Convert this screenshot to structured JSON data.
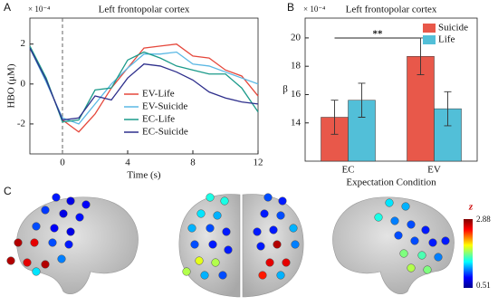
{
  "chart_data": [
    {
      "type": "line",
      "panel_label": "A",
      "title": "Left frontopolar cortex",
      "y_multiplier": "× 10⁻⁴",
      "ylabel": "HBO (μM)",
      "xlabel": "Time (s)",
      "x": [
        -2,
        -1,
        0,
        1,
        2,
        3,
        4,
        5,
        6,
        7,
        8,
        9,
        10,
        11,
        12
      ],
      "xlim": [
        -2,
        12
      ],
      "xticks": [
        0,
        4,
        8,
        12
      ],
      "ylim": [
        -3.5,
        3.3
      ],
      "yticks": [
        -2,
        0,
        2
      ],
      "reference_line_x": 0,
      "series": [
        {
          "name": "EV-Life",
          "color": "#e5473b",
          "values": [
            1.8,
            0.2,
            -1.8,
            -2.4,
            -1.5,
            -0.2,
            0.8,
            1.8,
            1.9,
            2.0,
            1.4,
            1.3,
            0.7,
            0.4,
            -0.6
          ]
        },
        {
          "name": "EV-Suicide",
          "color": "#5bb8e4",
          "values": [
            1.8,
            0.1,
            -1.7,
            -2.0,
            -1.0,
            0.0,
            0.8,
            1.5,
            1.5,
            1.6,
            1.0,
            0.9,
            0.6,
            0.3,
            0.0
          ]
        },
        {
          "name": "EC-Life",
          "color": "#1b9a8a",
          "values": [
            1.9,
            0.3,
            -1.9,
            -1.8,
            -0.3,
            -0.2,
            1.2,
            1.6,
            1.3,
            0.9,
            0.7,
            0.5,
            0.5,
            -0.2,
            -1.4
          ]
        },
        {
          "name": "EC-Suicide",
          "color": "#2e2f8c",
          "values": [
            1.8,
            0.2,
            -1.8,
            -1.7,
            -0.6,
            -0.8,
            0.3,
            1.0,
            0.9,
            0.6,
            0.2,
            -0.4,
            -0.7,
            -0.9,
            -1.0
          ]
        }
      ]
    },
    {
      "type": "bar",
      "panel_label": "B",
      "title": "Left frontopolar cortex",
      "y_multiplier": "× 10⁻⁴",
      "ylabel": "β",
      "xlabel": "Expectation Condition",
      "categories": [
        "EC",
        "EV"
      ],
      "ylim": [
        11.3,
        21.4
      ],
      "yticks": [
        14,
        16,
        18,
        20
      ],
      "annotation": "**",
      "series": [
        {
          "name": "Suicide",
          "color": "#e8584a",
          "values": [
            14.4,
            18.7
          ],
          "errors": [
            1.2,
            1.3
          ]
        },
        {
          "name": "Life",
          "color": "#52bfd8",
          "values": [
            15.6,
            15.0
          ],
          "errors": [
            1.2,
            1.2
          ]
        }
      ]
    }
  ],
  "panel_c": {
    "panel_label": "C",
    "colorbar": {
      "title": "z",
      "max_label": "2.88",
      "min_label": "0.51"
    }
  }
}
